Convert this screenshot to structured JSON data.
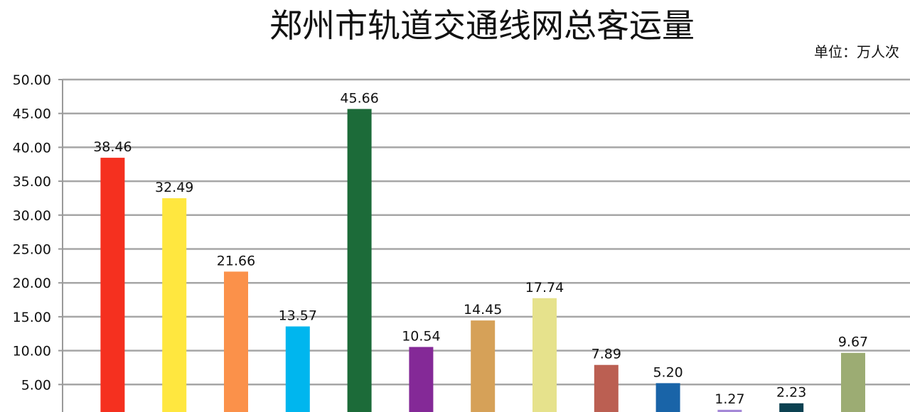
{
  "chart_data": {
    "type": "bar",
    "title": "郑州市轨道交通线网总客运量",
    "unit_label": "单位：万人次",
    "xlabel": "",
    "ylabel": "",
    "ylim": [
      0,
      50
    ],
    "yticks": [
      "5.00",
      "10.00",
      "15.00",
      "20.00",
      "25.00",
      "30.00",
      "35.00",
      "40.00",
      "45.00",
      "50.00"
    ],
    "grid": true,
    "legend": "none",
    "values": [
      38.46,
      32.49,
      21.66,
      13.57,
      45.66,
      10.54,
      14.45,
      17.74,
      7.89,
      5.2,
      1.27,
      2.23,
      9.67
    ],
    "value_labels": [
      "38.46",
      "32.49",
      "21.66",
      "13.57",
      "45.66",
      "10.54",
      "14.45",
      "17.74",
      "7.89",
      "5.20",
      "1.27",
      "2.23",
      "9.67"
    ],
    "colors": [
      "#f5301f",
      "#ffe73f",
      "#fb914a",
      "#00b6ee",
      "#1c6b39",
      "#842997",
      "#d6a158",
      "#e6e28c",
      "#bb5f52",
      "#1964a8",
      "#a488d7",
      "#0c4151",
      "#9cac73"
    ]
  }
}
